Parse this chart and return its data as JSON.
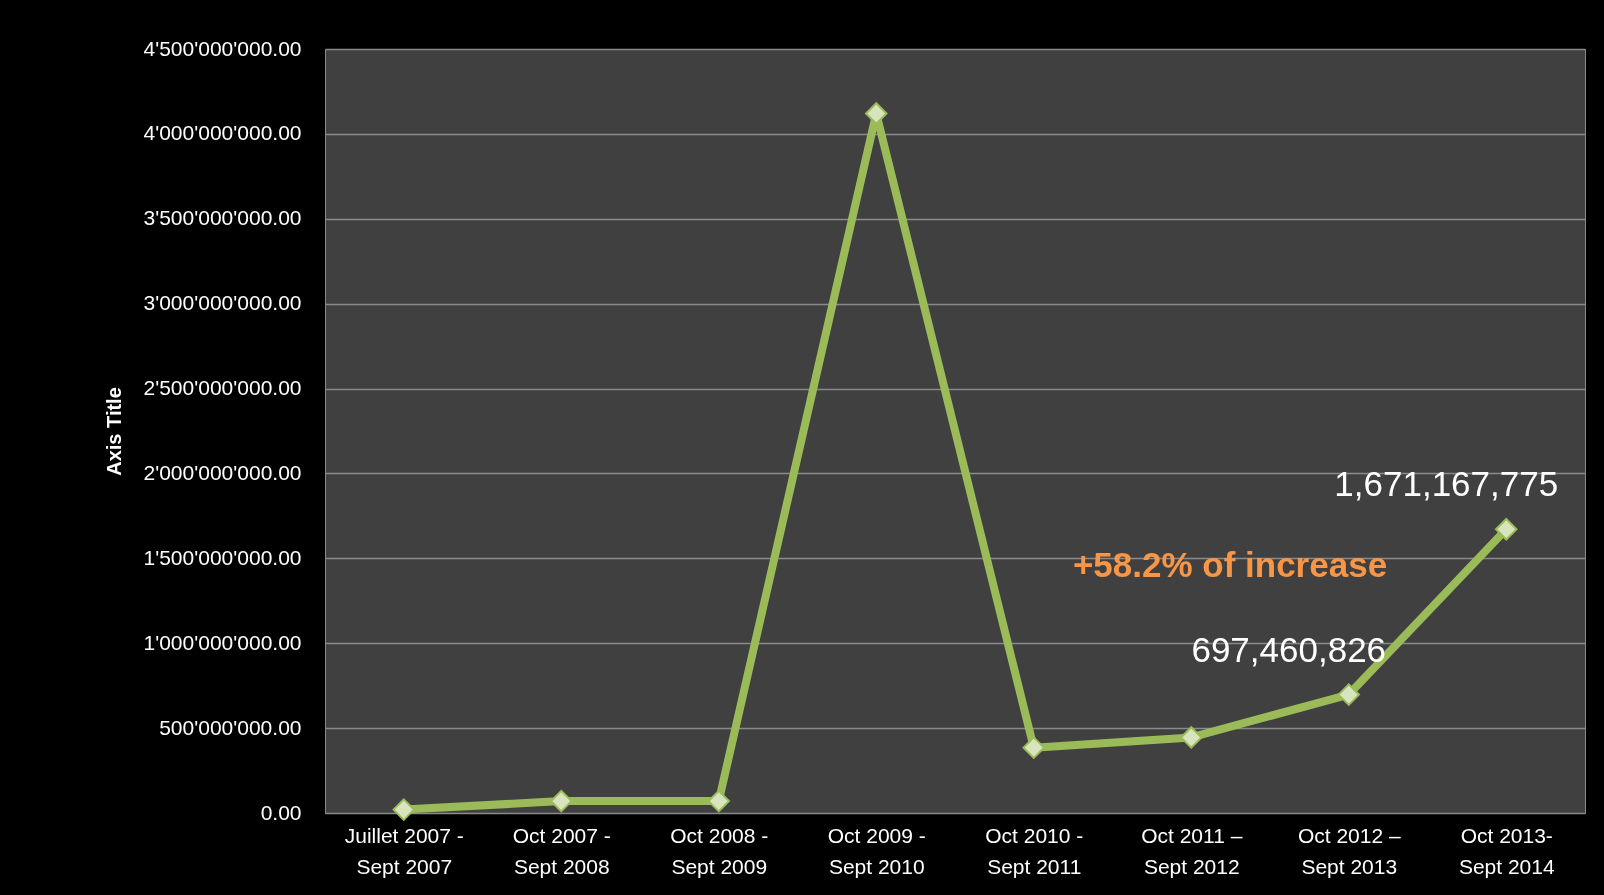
{
  "chart_data": {
    "type": "line",
    "ylabel": "Axis Title",
    "categories": [
      "Juillet 2007 -\nSept 2007",
      "Oct 2007 -\nSept 2008",
      "Oct 2008 -\nSept 2009",
      "Oct 2009 -\nSept 2010",
      "Oct 2010 -\nSept 2011",
      "Oct 2011 –\nSept  2012",
      "Oct 2012 –\nSept 2013",
      "Oct 2013-\nSept 2014"
    ],
    "series": [
      {
        "color": "#9bbb59",
        "values": [
          20000000,
          70000000,
          70000000,
          4120000000,
          385000000,
          445000000,
          697460826,
          1671167775
        ],
        "value_labels": [
          null,
          null,
          null,
          null,
          null,
          null,
          "697,460,826",
          "1,671,167,775"
        ]
      }
    ],
    "ylim": [
      0,
      4500000000
    ],
    "yticks": [
      {
        "value": 0,
        "label": "0.00"
      },
      {
        "value": 500000000,
        "label": "500'000'000.00"
      },
      {
        "value": 1000000000,
        "label": "1'000'000'000.00"
      },
      {
        "value": 1500000000,
        "label": "1'500'000'000.00"
      },
      {
        "value": 2000000000,
        "label": "2'000'000'000.00"
      },
      {
        "value": 2500000000,
        "label": "2'500'000'000.00"
      },
      {
        "value": 3000000000,
        "label": "3'000'000'000.00"
      },
      {
        "value": 3500000000,
        "label": "3'500'000'000.00"
      },
      {
        "value": 4000000000,
        "label": "4'000'000'000.00"
      },
      {
        "value": 4500000000,
        "label": "4'500'000'000.00"
      }
    ],
    "annotations": [
      "+58.2% of increase"
    ],
    "grid": "y",
    "marker": "diamond",
    "line_style": "solid"
  }
}
